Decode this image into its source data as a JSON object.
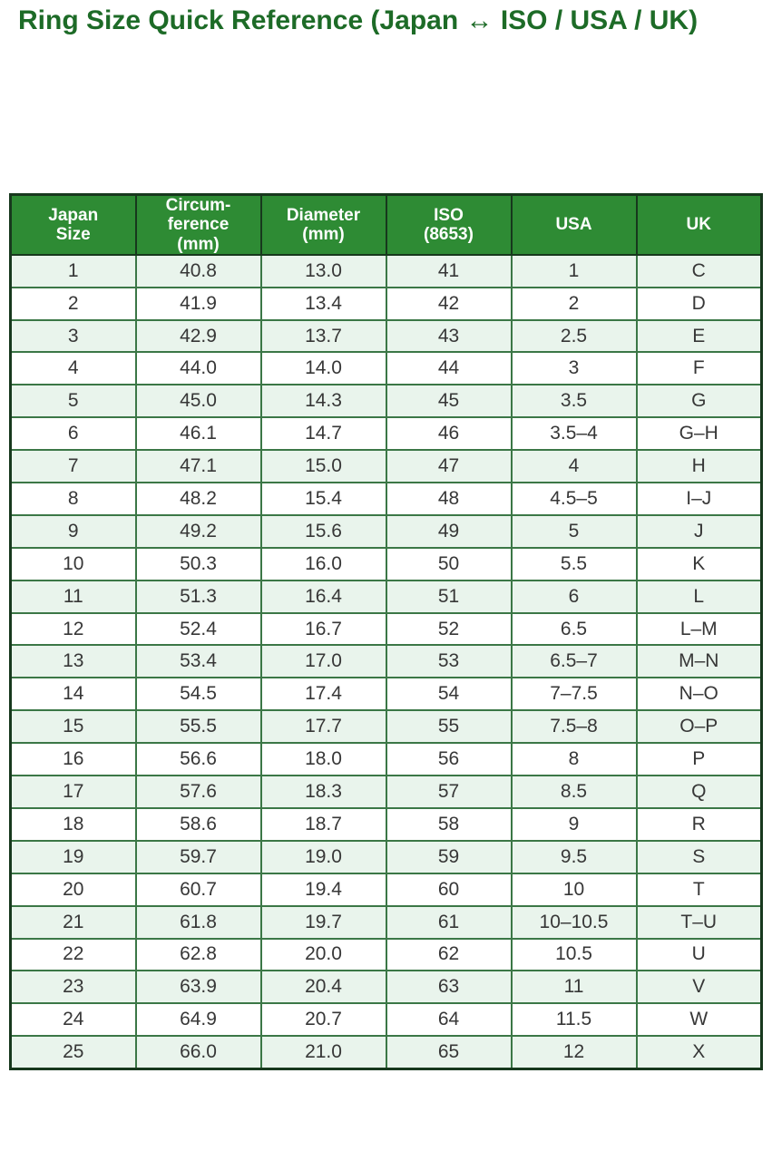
{
  "title": "Ring Size Quick Reference (Japan ↔ ISO / USA / UK)",
  "colors": {
    "title": "#1d6b27",
    "header_bg": "#2e8b34",
    "header_text": "#ffffff",
    "row_alt_bg": "#e9f4ec",
    "border": "#3b7746",
    "outer_border": "#17381d",
    "cell_text": "#373737"
  },
  "table": {
    "columns": [
      "Japan\nSize",
      "Circum-\nference\n(mm)",
      "Diameter\n(mm)",
      "ISO\n(8653)",
      "USA",
      "UK"
    ],
    "rows": [
      [
        "1",
        "40.8",
        "13.0",
        "41",
        "1",
        "C"
      ],
      [
        "2",
        "41.9",
        "13.4",
        "42",
        "2",
        "D"
      ],
      [
        "3",
        "42.9",
        "13.7",
        "43",
        "2.5",
        "E"
      ],
      [
        "4",
        "44.0",
        "14.0",
        "44",
        "3",
        "F"
      ],
      [
        "5",
        "45.0",
        "14.3",
        "45",
        "3.5",
        "G"
      ],
      [
        "6",
        "46.1",
        "14.7",
        "46",
        "3.5–4",
        "G–H"
      ],
      [
        "7",
        "47.1",
        "15.0",
        "47",
        "4",
        "H"
      ],
      [
        "8",
        "48.2",
        "15.4",
        "48",
        "4.5–5",
        "I–J"
      ],
      [
        "9",
        "49.2",
        "15.6",
        "49",
        "5",
        "J"
      ],
      [
        "10",
        "50.3",
        "16.0",
        "50",
        "5.5",
        "K"
      ],
      [
        "11",
        "51.3",
        "16.4",
        "51",
        "6",
        "L"
      ],
      [
        "12",
        "52.4",
        "16.7",
        "52",
        "6.5",
        "L–M"
      ],
      [
        "13",
        "53.4",
        "17.0",
        "53",
        "6.5–7",
        "M–N"
      ],
      [
        "14",
        "54.5",
        "17.4",
        "54",
        "7–7.5",
        "N–O"
      ],
      [
        "15",
        "55.5",
        "17.7",
        "55",
        "7.5–8",
        "O–P"
      ],
      [
        "16",
        "56.6",
        "18.0",
        "56",
        "8",
        "P"
      ],
      [
        "17",
        "57.6",
        "18.3",
        "57",
        "8.5",
        "Q"
      ],
      [
        "18",
        "58.6",
        "18.7",
        "58",
        "9",
        "R"
      ],
      [
        "19",
        "59.7",
        "19.0",
        "59",
        "9.5",
        "S"
      ],
      [
        "20",
        "60.7",
        "19.4",
        "60",
        "10",
        "T"
      ],
      [
        "21",
        "61.8",
        "19.7",
        "61",
        "10–10.5",
        "T–U"
      ],
      [
        "22",
        "62.8",
        "20.0",
        "62",
        "10.5",
        "U"
      ],
      [
        "23",
        "63.9",
        "20.4",
        "63",
        "11",
        "V"
      ],
      [
        "24",
        "64.9",
        "20.7",
        "64",
        "11.5",
        "W"
      ],
      [
        "25",
        "66.0",
        "21.0",
        "65",
        "12",
        "X"
      ]
    ]
  }
}
